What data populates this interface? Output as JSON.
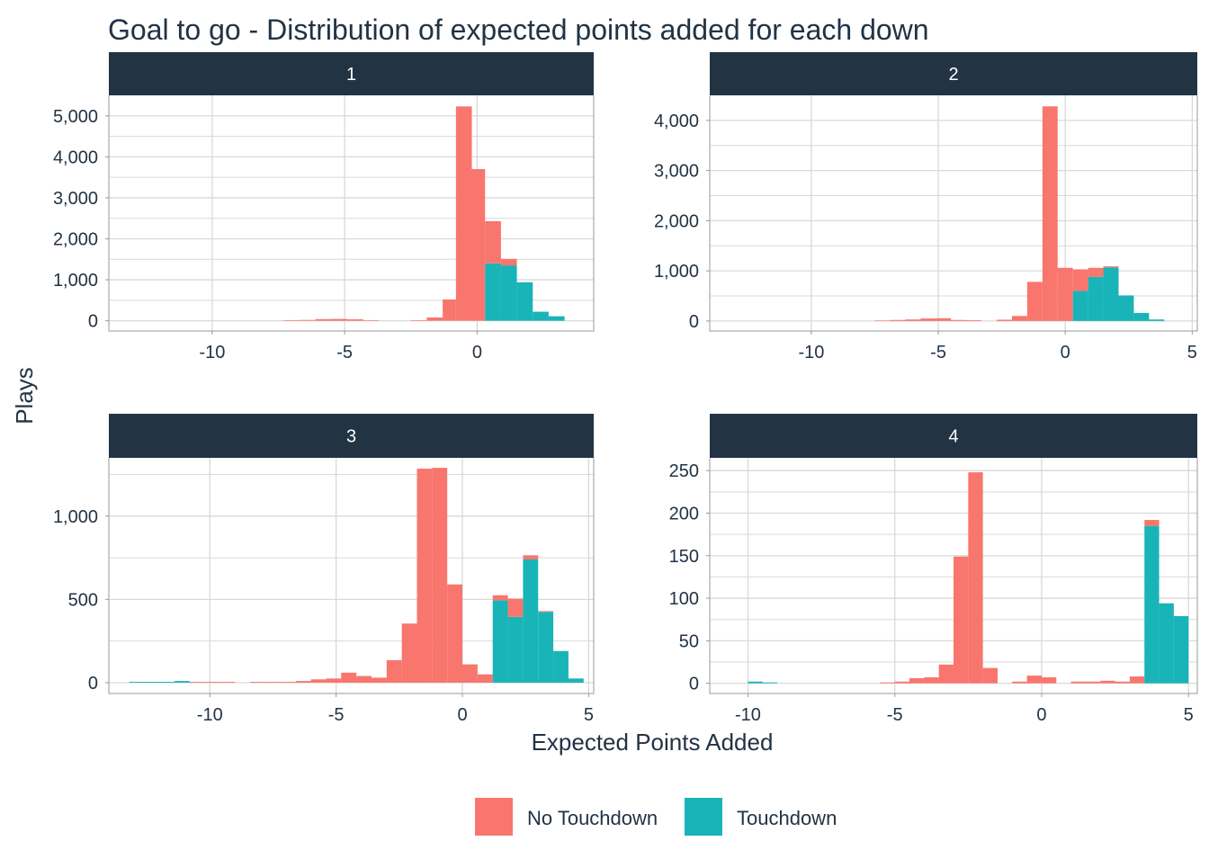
{
  "chart_data": {
    "type": "bar",
    "title": "Goal to go - Distribution of expected points added for each down",
    "xlabel": "Expected Points Added",
    "ylabel": "Plays",
    "layout": "facet-grid 2x2, independent scales",
    "legend": {
      "position": "bottom",
      "entries": [
        "No Touchdown",
        "Touchdown"
      ]
    },
    "colors": {
      "No Touchdown": "#F8766D",
      "Touchdown": "#19B4B8",
      "strip": "#223344",
      "grid": "#D9D9D9"
    },
    "stacking": "stacked",
    "grid": true,
    "panels": [
      {
        "label": "1",
        "xlim": [
          -13.9,
          4.4
        ],
        "ylim": [
          -250,
          5500
        ],
        "xticks": [
          -10,
          -5,
          0
        ],
        "xtick_labels": [
          "-10",
          "-5",
          "0"
        ],
        "yticks": [
          0,
          1000,
          2000,
          3000,
          4000,
          5000
        ],
        "ytick_labels": [
          "0",
          "1,000",
          "2,000",
          "3,000",
          "4,000",
          "5,000"
        ],
        "bins": [
          {
            "x0": -7.3,
            "x1": -6.7,
            "no_td": 15,
            "td": 0
          },
          {
            "x0": -6.7,
            "x1": -6.1,
            "no_td": 20,
            "td": 0
          },
          {
            "x0": -6.1,
            "x1": -5.5,
            "no_td": 40,
            "td": 0
          },
          {
            "x0": -5.5,
            "x1": -4.9,
            "no_td": 45,
            "td": 0
          },
          {
            "x0": -4.9,
            "x1": -4.3,
            "no_td": 35,
            "td": 0
          },
          {
            "x0": -4.3,
            "x1": -3.7,
            "no_td": 15,
            "td": 0
          },
          {
            "x0": -2.5,
            "x1": -1.9,
            "no_td": 15,
            "td": 0
          },
          {
            "x0": -1.9,
            "x1": -1.3,
            "no_td": 80,
            "td": 0
          },
          {
            "x0": -1.3,
            "x1": -0.8,
            "no_td": 520,
            "td": 0
          },
          {
            "x0": -0.8,
            "x1": -0.2,
            "no_td": 5230,
            "td": 0
          },
          {
            "x0": -0.2,
            "x1": 0.3,
            "no_td": 3700,
            "td": 0
          },
          {
            "x0": 0.3,
            "x1": 0.9,
            "no_td": 1030,
            "td": 1400
          },
          {
            "x0": 0.9,
            "x1": 1.5,
            "no_td": 160,
            "td": 1350
          },
          {
            "x0": 1.5,
            "x1": 2.1,
            "no_td": 0,
            "td": 940
          },
          {
            "x0": 2.1,
            "x1": 2.7,
            "no_td": 0,
            "td": 220
          },
          {
            "x0": 2.7,
            "x1": 3.3,
            "no_td": 0,
            "td": 110
          }
        ]
      },
      {
        "label": "2",
        "xlim": [
          -14.0,
          5.2
        ],
        "ylim": [
          -200,
          4500
        ],
        "xticks": [
          -10,
          -5,
          0,
          5
        ],
        "xtick_labels": [
          "-10",
          "-5",
          "0",
          "5"
        ],
        "yticks": [
          0,
          1000,
          2000,
          3000,
          4000
        ],
        "ytick_labels": [
          "0",
          "1,000",
          "2,000",
          "3,000",
          "4,000"
        ],
        "bins": [
          {
            "x0": -7.5,
            "x1": -6.9,
            "no_td": 10,
            "td": 0
          },
          {
            "x0": -6.9,
            "x1": -6.3,
            "no_td": 20,
            "td": 0
          },
          {
            "x0": -6.3,
            "x1": -5.7,
            "no_td": 30,
            "td": 0
          },
          {
            "x0": -5.7,
            "x1": -5.1,
            "no_td": 50,
            "td": 0
          },
          {
            "x0": -5.1,
            "x1": -4.5,
            "no_td": 55,
            "td": 0
          },
          {
            "x0": -4.5,
            "x1": -3.9,
            "no_td": 20,
            "td": 0
          },
          {
            "x0": -3.9,
            "x1": -3.3,
            "no_td": 15,
            "td": 0
          },
          {
            "x0": -2.7,
            "x1": -2.1,
            "no_td": 25,
            "td": 0
          },
          {
            "x0": -2.1,
            "x1": -1.5,
            "no_td": 100,
            "td": 0
          },
          {
            "x0": -1.5,
            "x1": -0.9,
            "no_td": 780,
            "td": 0
          },
          {
            "x0": -0.9,
            "x1": -0.3,
            "no_td": 4280,
            "td": 0
          },
          {
            "x0": -0.3,
            "x1": 0.3,
            "no_td": 1060,
            "td": 0
          },
          {
            "x0": 0.3,
            "x1": 0.9,
            "no_td": 430,
            "td": 600
          },
          {
            "x0": 0.9,
            "x1": 1.5,
            "no_td": 180,
            "td": 880
          },
          {
            "x0": 1.5,
            "x1": 2.1,
            "no_td": 20,
            "td": 1070
          },
          {
            "x0": 2.1,
            "x1": 2.7,
            "no_td": 0,
            "td": 510
          },
          {
            "x0": 2.7,
            "x1": 3.3,
            "no_td": 0,
            "td": 160
          },
          {
            "x0": 3.3,
            "x1": 3.9,
            "no_td": 0,
            "td": 30
          }
        ]
      },
      {
        "label": "3",
        "xlim": [
          -14.0,
          5.2
        ],
        "ylim": [
          -65,
          1350
        ],
        "xticks": [
          -10,
          -5,
          0,
          5
        ],
        "xtick_labels": [
          "-10",
          "-5",
          "0",
          "5"
        ],
        "yticks": [
          0,
          500,
          1000
        ],
        "ytick_labels": [
          "0",
          "500",
          "1,000"
        ],
        "bins": [
          {
            "x0": -13.2,
            "x1": -12.6,
            "no_td": 0,
            "td": 5
          },
          {
            "x0": -12.6,
            "x1": -12.0,
            "no_td": 0,
            "td": 5
          },
          {
            "x0": -12.0,
            "x1": -11.4,
            "no_td": 0,
            "td": 5
          },
          {
            "x0": -11.4,
            "x1": -10.8,
            "no_td": 0,
            "td": 10
          },
          {
            "x0": -10.8,
            "x1": -10.2,
            "no_td": 5,
            "td": 0
          },
          {
            "x0": -10.2,
            "x1": -9.6,
            "no_td": 5,
            "td": 0
          },
          {
            "x0": -9.6,
            "x1": -9.0,
            "no_td": 5,
            "td": 0
          },
          {
            "x0": -8.4,
            "x1": -7.8,
            "no_td": 5,
            "td": 0
          },
          {
            "x0": -7.8,
            "x1": -7.2,
            "no_td": 5,
            "td": 0
          },
          {
            "x0": -7.2,
            "x1": -6.6,
            "no_td": 5,
            "td": 0
          },
          {
            "x0": -6.6,
            "x1": -6.0,
            "no_td": 10,
            "td": 0
          },
          {
            "x0": -6.0,
            "x1": -5.4,
            "no_td": 20,
            "td": 0
          },
          {
            "x0": -5.4,
            "x1": -4.8,
            "no_td": 25,
            "td": 0
          },
          {
            "x0": -4.8,
            "x1": -4.2,
            "no_td": 60,
            "td": 0
          },
          {
            "x0": -4.2,
            "x1": -3.6,
            "no_td": 40,
            "td": 0
          },
          {
            "x0": -3.6,
            "x1": -3.0,
            "no_td": 30,
            "td": 0
          },
          {
            "x0": -3.0,
            "x1": -2.4,
            "no_td": 135,
            "td": 0
          },
          {
            "x0": -2.4,
            "x1": -1.8,
            "no_td": 355,
            "td": 0
          },
          {
            "x0": -1.8,
            "x1": -1.2,
            "no_td": 1285,
            "td": 0
          },
          {
            "x0": -1.2,
            "x1": -0.6,
            "no_td": 1290,
            "td": 0
          },
          {
            "x0": -0.6,
            "x1": 0.0,
            "no_td": 590,
            "td": 0
          },
          {
            "x0": 0.0,
            "x1": 0.6,
            "no_td": 110,
            "td": 0
          },
          {
            "x0": 0.6,
            "x1": 1.2,
            "no_td": 50,
            "td": 0
          },
          {
            "x0": 1.2,
            "x1": 1.8,
            "no_td": 30,
            "td": 495
          },
          {
            "x0": 1.8,
            "x1": 2.4,
            "no_td": 110,
            "td": 395
          },
          {
            "x0": 2.4,
            "x1": 3.0,
            "no_td": 25,
            "td": 740
          },
          {
            "x0": 3.0,
            "x1": 3.6,
            "no_td": 5,
            "td": 425
          },
          {
            "x0": 3.6,
            "x1": 4.2,
            "no_td": 0,
            "td": 190
          },
          {
            "x0": 4.2,
            "x1": 4.8,
            "no_td": 0,
            "td": 25
          }
        ]
      },
      {
        "label": "4",
        "xlim": [
          -11.3,
          5.3
        ],
        "ylim": [
          -12,
          265
        ],
        "xticks": [
          -10,
          -5,
          0,
          5
        ],
        "xtick_labels": [
          "-10",
          "-5",
          "0",
          "5"
        ],
        "yticks": [
          0,
          50,
          100,
          150,
          200,
          250
        ],
        "ytick_labels": [
          "0",
          "50",
          "100",
          "150",
          "200",
          "250"
        ],
        "bins": [
          {
            "x0": -10.0,
            "x1": -9.5,
            "no_td": 0,
            "td": 2
          },
          {
            "x0": -9.5,
            "x1": -9.0,
            "no_td": 0,
            "td": 1
          },
          {
            "x0": -5.5,
            "x1": -5.0,
            "no_td": 1,
            "td": 0
          },
          {
            "x0": -5.0,
            "x1": -4.5,
            "no_td": 2,
            "td": 0
          },
          {
            "x0": -4.5,
            "x1": -4.0,
            "no_td": 6,
            "td": 0
          },
          {
            "x0": -4.0,
            "x1": -3.5,
            "no_td": 7,
            "td": 0
          },
          {
            "x0": -3.5,
            "x1": -3.0,
            "no_td": 22,
            "td": 0
          },
          {
            "x0": -3.0,
            "x1": -2.5,
            "no_td": 149,
            "td": 0
          },
          {
            "x0": -2.5,
            "x1": -2.0,
            "no_td": 248,
            "td": 0
          },
          {
            "x0": -2.0,
            "x1": -1.5,
            "no_td": 18,
            "td": 0
          },
          {
            "x0": -1.0,
            "x1": -0.5,
            "no_td": 2,
            "td": 0
          },
          {
            "x0": -0.5,
            "x1": 0.0,
            "no_td": 9,
            "td": 0
          },
          {
            "x0": 0.0,
            "x1": 0.5,
            "no_td": 7,
            "td": 0
          },
          {
            "x0": 1.0,
            "x1": 1.5,
            "no_td": 2,
            "td": 0
          },
          {
            "x0": 1.5,
            "x1": 2.0,
            "no_td": 2,
            "td": 0
          },
          {
            "x0": 2.0,
            "x1": 2.5,
            "no_td": 3,
            "td": 0
          },
          {
            "x0": 2.5,
            "x1": 3.0,
            "no_td": 2,
            "td": 0
          },
          {
            "x0": 3.0,
            "x1": 3.5,
            "no_td": 8,
            "td": 0
          },
          {
            "x0": 3.5,
            "x1": 4.0,
            "no_td": 7,
            "td": 185
          },
          {
            "x0": 4.0,
            "x1": 4.5,
            "no_td": 0,
            "td": 94
          },
          {
            "x0": 4.5,
            "x1": 5.0,
            "no_td": 0,
            "td": 79
          }
        ]
      }
    ]
  }
}
